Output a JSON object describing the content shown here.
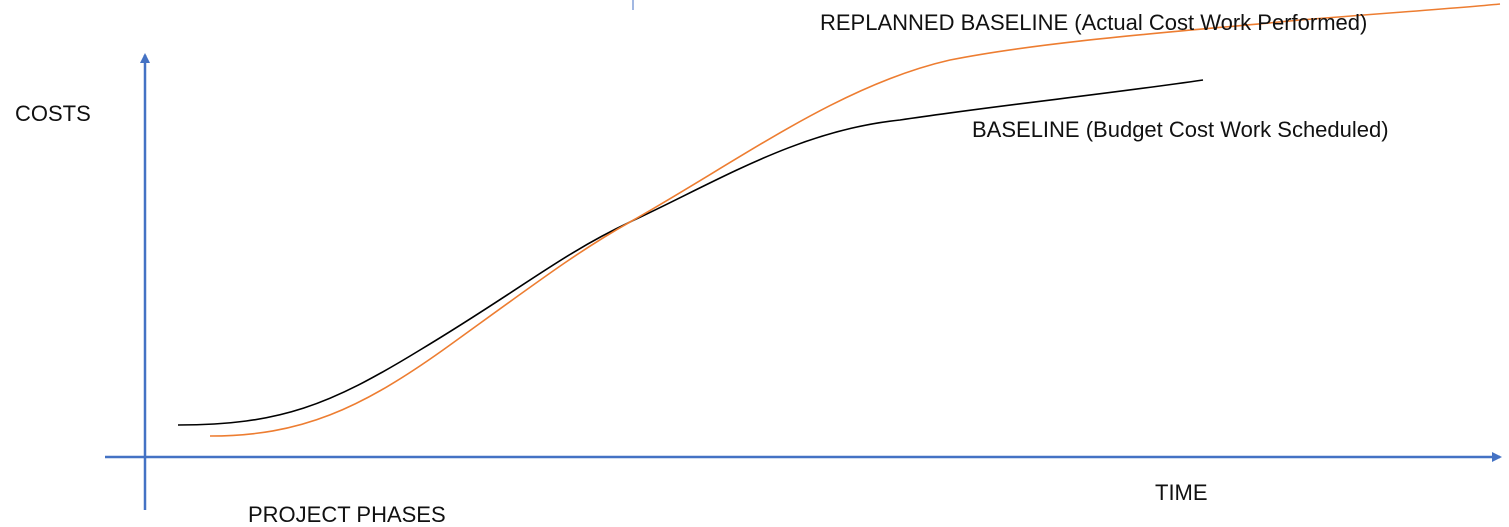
{
  "labels": {
    "replanned": "REPLANNED BASELINE (Actual Cost Work Performed)",
    "baseline": "BASELINE (Budget Cost Work Scheduled)",
    "y_axis": "COSTS",
    "x_axis": "TIME",
    "phases": "PROJECT PHASES"
  }
}
